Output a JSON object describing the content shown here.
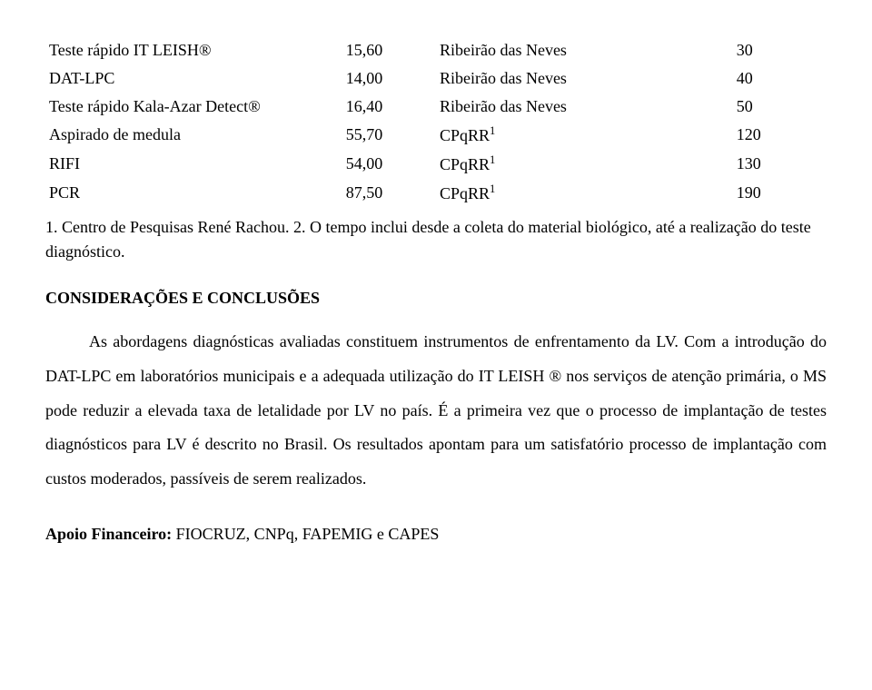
{
  "table": {
    "rows": [
      {
        "test": "Teste rápido IT LEISH®",
        "value": "15,60",
        "location": "Ribeirão das Neves",
        "n": "30"
      },
      {
        "test": "DAT-LPC",
        "value": "14,00",
        "location": "Ribeirão das Neves",
        "n": "40"
      },
      {
        "test": "Teste rápido Kala-Azar Detect®",
        "value": "16,40",
        "location": "Ribeirão das Neves",
        "n": "50"
      },
      {
        "test": "Aspirado de medula",
        "value": "55,70",
        "location": "CPqRR",
        "loc_sup": "1",
        "n": "120"
      },
      {
        "test": "RIFI",
        "value": "54,00",
        "location": "CPqRR",
        "loc_sup": "1",
        "n": "130"
      },
      {
        "test": "PCR",
        "value": "87,50",
        "location": "CPqRR",
        "loc_sup": "1",
        "n": "190"
      }
    ]
  },
  "footnotes": {
    "f1": "1. Centro de Pesquisas René Rachou. 2. O tempo inclui desde a coleta do material biológico, até a realização do teste diagnóstico."
  },
  "section_title": "CONSIDERAÇÕES E CONCLUSÕES",
  "body_paragraph": "As abordagens diagnósticas avaliadas constituem instrumentos de enfrentamento da LV. Com a introdução do DAT-LPC em laboratórios municipais e a adequada utilização do IT LEISH ® nos serviços de atenção primária, o MS pode reduzir a elevada taxa de letalidade por LV no país. É a primeira vez que o processo de implantação de testes diagnósticos para LV é descrito no Brasil. Os resultados apontam para um satisfatório processo de implantação com custos moderados, passíveis de serem realizados.",
  "funding_label": "Apoio Financeiro: ",
  "funding_text": "FIOCRUZ, CNPq, FAPEMIG e CAPES"
}
